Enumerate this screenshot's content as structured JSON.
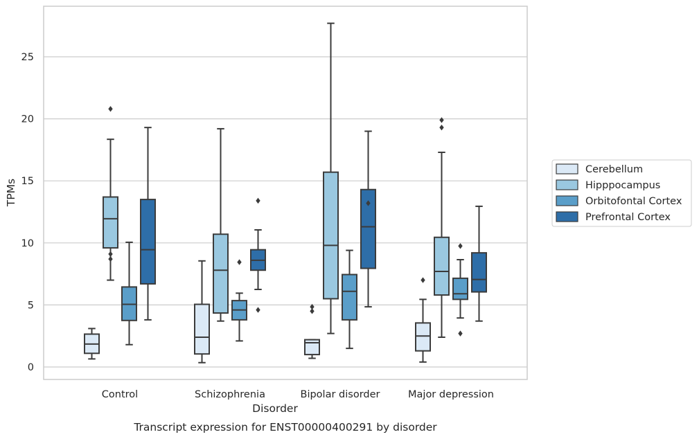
{
  "chart_data": {
    "type": "box",
    "xlabel": "Disorder",
    "ylabel": "TPMs",
    "caption": "Transcript expression for ENST00000400291 by disorder",
    "ylim": [
      -1,
      28.5
    ],
    "yticks": [
      0,
      5,
      10,
      15,
      20,
      25
    ],
    "grid": "horizontal",
    "legend_position": "right",
    "categories": [
      "Control",
      "Schizophrenia",
      "Bipolar disorder",
      "Major depression"
    ],
    "series": [
      {
        "name": "Cerebellum",
        "color": "#dbe9f6",
        "boxes": [
          {
            "whislo": 0.65,
            "q1": 1.1,
            "med": 1.85,
            "q3": 2.65,
            "whishi": 3.1,
            "fliers": []
          },
          {
            "whislo": 0.35,
            "q1": 1.05,
            "med": 2.4,
            "q3": 5.05,
            "whishi": 8.55,
            "fliers": []
          },
          {
            "whislo": 0.7,
            "q1": 1.0,
            "med": 1.95,
            "q3": 2.2,
            "whishi": 2.2,
            "fliers": [
              4.5,
              4.85
            ]
          },
          {
            "whislo": 0.4,
            "q1": 1.3,
            "med": 2.5,
            "q3": 3.55,
            "whishi": 5.45,
            "fliers": [
              7.0
            ]
          }
        ]
      },
      {
        "name": "Hipppocampus",
        "color": "#9ac8e0",
        "boxes": [
          {
            "whislo": 7.0,
            "q1": 9.6,
            "med": 11.95,
            "q3": 13.7,
            "whishi": 18.35,
            "fliers": [
              8.7,
              9.1,
              20.8
            ]
          },
          {
            "whislo": 3.7,
            "q1": 4.35,
            "med": 7.8,
            "q3": 10.7,
            "whishi": 19.2,
            "fliers": []
          },
          {
            "whislo": 2.7,
            "q1": 5.5,
            "med": 9.8,
            "q3": 15.7,
            "whishi": 27.7,
            "fliers": []
          },
          {
            "whislo": 2.4,
            "q1": 5.8,
            "med": 7.7,
            "q3": 10.45,
            "whishi": 17.3,
            "fliers": [
              19.3,
              19.9
            ]
          }
        ]
      },
      {
        "name": "Orbitofontal Cortex",
        "color": "#5a9ec9",
        "boxes": [
          {
            "whislo": 1.8,
            "q1": 3.75,
            "med": 5.05,
            "q3": 6.45,
            "whishi": 10.05,
            "fliers": []
          },
          {
            "whislo": 2.1,
            "q1": 3.8,
            "med": 4.6,
            "q3": 5.35,
            "whishi": 5.95,
            "fliers": [
              8.45
            ]
          },
          {
            "whislo": 1.5,
            "q1": 3.8,
            "med": 6.1,
            "q3": 7.45,
            "whishi": 9.4,
            "fliers": []
          },
          {
            "whislo": 3.95,
            "q1": 5.45,
            "med": 5.9,
            "q3": 7.15,
            "whishi": 8.65,
            "fliers": [
              2.7,
              9.75
            ]
          }
        ]
      },
      {
        "name": "Prefrontal Cortex",
        "color": "#2e6ea8",
        "boxes": [
          {
            "whislo": 3.8,
            "q1": 6.7,
            "med": 9.45,
            "q3": 13.5,
            "whishi": 19.3,
            "fliers": []
          },
          {
            "whislo": 6.25,
            "q1": 7.8,
            "med": 8.6,
            "q3": 9.45,
            "whishi": 11.05,
            "fliers": [
              4.6,
              13.4
            ]
          },
          {
            "whislo": 4.85,
            "q1": 7.95,
            "med": 11.3,
            "q3": 14.3,
            "whishi": 19.0,
            "fliers": [
              13.2
            ]
          },
          {
            "whislo": 3.7,
            "q1": 6.05,
            "med": 7.05,
            "q3": 9.2,
            "whishi": 12.95,
            "fliers": []
          }
        ]
      }
    ]
  }
}
